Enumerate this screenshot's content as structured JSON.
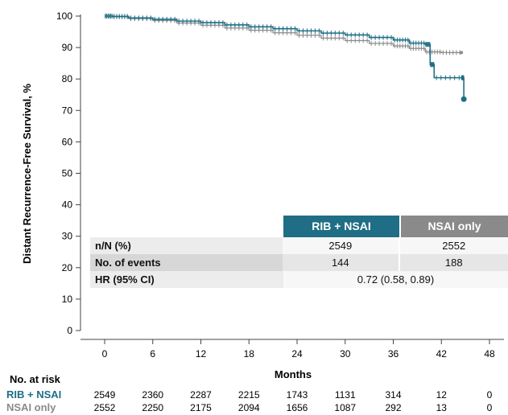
{
  "chart_data": {
    "type": "line",
    "xlabel": "Months",
    "ylabel": "Distant Recurrence-Free Survival, %",
    "xlim": [
      0,
      48
    ],
    "ylim": [
      0,
      100
    ],
    "xticks": [
      0,
      6,
      12,
      18,
      24,
      30,
      36,
      42,
      48
    ],
    "yticks": [
      0,
      10,
      20,
      30,
      40,
      50,
      60,
      70,
      80,
      90,
      100
    ],
    "series": [
      {
        "name": "NSAI only",
        "color": "#8a8a8a",
        "x": [
          0,
          1,
          3,
          6,
          9,
          12,
          15,
          18,
          21,
          24,
          27,
          30,
          33,
          36,
          38,
          40,
          42,
          44.5
        ],
        "y": [
          100,
          99.8,
          99.2,
          98.6,
          97.8,
          97.1,
          96.2,
          95.5,
          94.7,
          93.9,
          93.0,
          92.2,
          91.3,
          90.5,
          89.7,
          88.6,
          88.4,
          88.4
        ]
      },
      {
        "name": "RIB + NSAI",
        "color": "#1f6e85",
        "x": [
          0,
          1,
          3,
          6,
          9,
          12,
          15,
          18,
          21,
          24,
          27,
          30,
          33,
          36,
          38,
          40,
          40.6,
          41.1,
          44.5,
          44.8
        ],
        "y": [
          100,
          99.9,
          99.4,
          99.0,
          98.4,
          97.9,
          97.2,
          96.6,
          96.0,
          95.3,
          94.6,
          94.0,
          93.2,
          92.4,
          91.4,
          91.0,
          84.6,
          80.4,
          80.4,
          73.6
        ]
      }
    ],
    "table": {
      "headers": [
        "RIB + NSAI",
        "NSAI only"
      ],
      "rows": [
        {
          "label": "n/N (%)",
          "v1": "2549",
          "v2": "2552"
        },
        {
          "label": "No. of events",
          "v1": "144",
          "v2": "188"
        }
      ],
      "hr_label": "HR (95% CI)",
      "hr_value": "0.72 (0.58, 0.89)"
    },
    "at_risk": {
      "title": "No. at risk",
      "rows": [
        {
          "name": "RIB + NSAI",
          "color": "#1f6e85",
          "values": [
            "2549",
            "2360",
            "2287",
            "2215",
            "1743",
            "1131",
            "314",
            "12",
            "0"
          ]
        },
        {
          "name": "NSAI only",
          "color": "#8a8a8a",
          "values": [
            "2552",
            "2250",
            "2175",
            "2094",
            "1656",
            "1087",
            "292",
            "13",
            "0"
          ]
        }
      ]
    }
  }
}
